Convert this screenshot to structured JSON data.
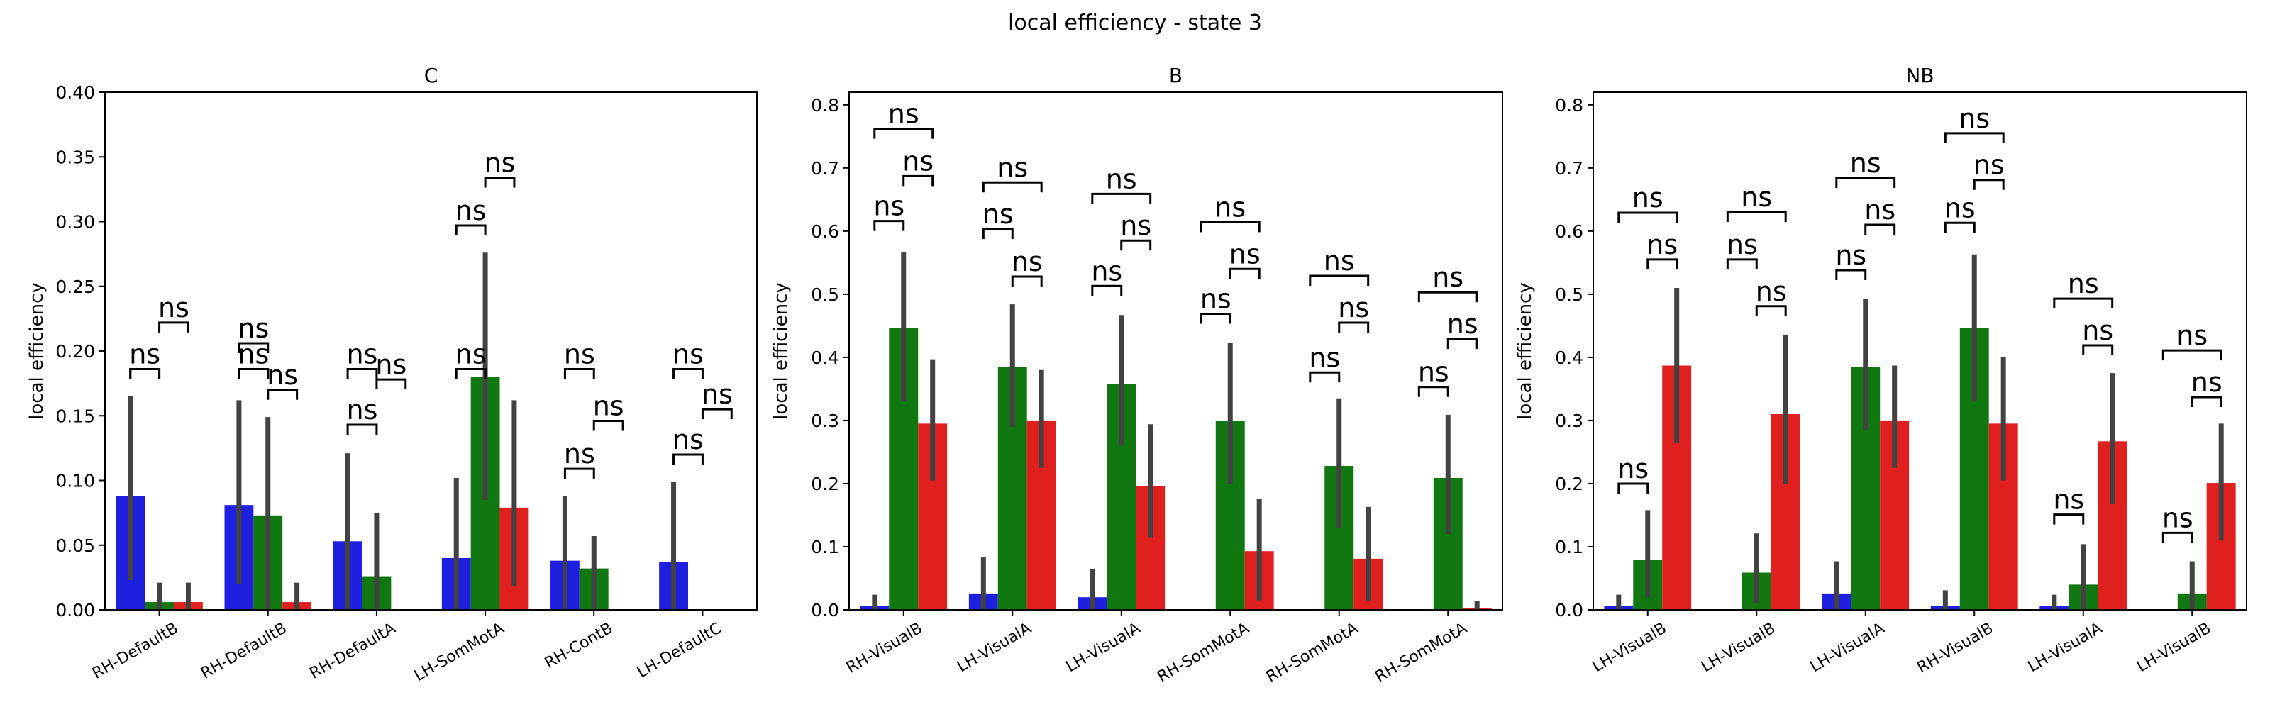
{
  "figure": {
    "title": "local efficiency - state 3"
  },
  "colors": {
    "series1": "#1f1fe0",
    "series2": "#117711",
    "series3": "#e01f1f",
    "errorbar": "#424242"
  },
  "chart_data": [
    {
      "type": "bar",
      "title": "C",
      "ylabel": "local efficiency",
      "ylim": [
        0,
        0.4
      ],
      "yticks": [
        "0.00",
        "0.05",
        "0.10",
        "0.15",
        "0.20",
        "0.25",
        "0.30",
        "0.35",
        "0.40"
      ],
      "categories": [
        "RH-DefaultB",
        "RH-DefaultB",
        "RH-DefaultA",
        "LH-SomMotA",
        "RH-ContB",
        "LH-DefaultC"
      ],
      "series": [
        {
          "values": [
            0.088,
            0.081,
            0.053,
            0.04,
            0.038,
            0.037
          ],
          "err_low": [
            0.023,
            0.02,
            0.0,
            0.0,
            0.0,
            0.0
          ],
          "err_high": [
            0.165,
            0.162,
            0.121,
            0.102,
            0.088,
            0.099
          ]
        },
        {
          "values": [
            0.006,
            0.073,
            0.026,
            0.18,
            0.032,
            0.0
          ],
          "err_low": [
            0.0,
            0.0,
            0.0,
            0.085,
            0.0,
            0.0
          ],
          "err_high": [
            0.021,
            0.149,
            0.075,
            0.276,
            0.057,
            0.0
          ]
        },
        {
          "values": [
            0.006,
            0.006,
            0.0,
            0.079,
            0.0,
            0.0
          ],
          "err_low": [
            0.0,
            0.0,
            0.0,
            0.018,
            0.0,
            0.0
          ],
          "err_high": [
            0.021,
            0.021,
            0.0,
            0.162,
            0.0,
            0.0
          ]
        }
      ],
      "annotations": {
        "label": "ns",
        "brackets": [
          {
            "from": 0,
            "to": 1,
            "y": [
              0.186,
              0.186,
              0.186,
              0.186,
              0.186,
              0.186
            ]
          },
          {
            "from": 1,
            "to": 2,
            "y": [
              0.222,
              0.17,
              0.178,
              0.334,
              0.146,
              0.155
            ]
          },
          {
            "from": 0,
            "to": 2,
            "y": [
              0.259,
              0.243,
              0.216,
              0.371,
              0.183,
              0.193
            ]
          }
        ],
        "first_bracket_y": [
          0.186,
          0.206,
          0.143,
          0.297,
          0.109,
          0.12
        ]
      }
    },
    {
      "type": "bar",
      "title": "B",
      "ylabel": "local efficiency",
      "ylim": [
        0,
        0.82
      ],
      "yticks": [
        "0.0",
        "0.1",
        "0.2",
        "0.3",
        "0.4",
        "0.5",
        "0.6",
        "0.7",
        "0.8"
      ],
      "categories": [
        "RH-VisualB",
        "LH-VisualA",
        "LH-VisualA",
        "RH-SomMotA",
        "RH-SomMotA",
        "RH-SomMotA"
      ],
      "series": [
        {
          "values": [
            0.006,
            0.026,
            0.02,
            0.0,
            0.0,
            0.0
          ],
          "err_low": [
            0.0,
            0.0,
            0.0,
            0.0,
            0.0,
            0.0
          ],
          "err_high": [
            0.024,
            0.083,
            0.064,
            0.0,
            0.0,
            0.0
          ]
        },
        {
          "values": [
            0.447,
            0.385,
            0.358,
            0.299,
            0.228,
            0.209
          ],
          "err_low": [
            0.33,
            0.29,
            0.26,
            0.2,
            0.13,
            0.12
          ],
          "err_high": [
            0.566,
            0.484,
            0.467,
            0.423,
            0.335,
            0.309
          ]
        },
        {
          "values": [
            0.295,
            0.3,
            0.196,
            0.093,
            0.081,
            0.003
          ],
          "err_low": [
            0.205,
            0.225,
            0.115,
            0.015,
            0.015,
            0.0
          ],
          "err_high": [
            0.397,
            0.38,
            0.294,
            0.176,
            0.163,
            0.014
          ]
        }
      ],
      "annotations": {
        "label": "ns",
        "first_bracket_y": [
          0.616,
          0.603,
          0.513,
          0.469,
          0.376,
          0.353
        ],
        "brackets": [
          {
            "from": 1,
            "to": 2,
            "y": [
              0.687,
              0.528,
              0.585,
              0.54,
              0.455,
              0.429
            ]
          },
          {
            "from": 0,
            "to": 2,
            "y": [
              0.762,
              0.677,
              0.659,
              0.614,
              0.529,
              0.503
            ]
          }
        ]
      }
    },
    {
      "type": "bar",
      "title": "NB",
      "ylabel": "local efficiency",
      "ylim": [
        0,
        0.82
      ],
      "yticks": [
        "0.0",
        "0.1",
        "0.2",
        "0.3",
        "0.4",
        "0.5",
        "0.6",
        "0.7",
        "0.8"
      ],
      "categories": [
        "LH-VisualB",
        "LH-VisualB",
        "LH-VisualA",
        "RH-VisualB",
        "LH-VisualA",
        "LH-VisualB"
      ],
      "series": [
        {
          "values": [
            0.006,
            0.0,
            0.026,
            0.006,
            0.006,
            0.0
          ],
          "err_low": [
            0.0,
            0.0,
            0.0,
            0.0,
            0.0,
            0.0
          ],
          "err_high": [
            0.024,
            0.0,
            0.077,
            0.031,
            0.024,
            0.0
          ]
        },
        {
          "values": [
            0.079,
            0.059,
            0.385,
            0.447,
            0.04,
            0.026
          ],
          "err_low": [
            0.02,
            0.01,
            0.285,
            0.33,
            0.0,
            0.0
          ],
          "err_high": [
            0.158,
            0.121,
            0.493,
            0.563,
            0.104,
            0.077
          ]
        },
        {
          "values": [
            0.387,
            0.31,
            0.3,
            0.295,
            0.267,
            0.201
          ],
          "err_low": [
            0.265,
            0.2,
            0.225,
            0.205,
            0.168,
            0.11
          ],
          "err_high": [
            0.51,
            0.436,
            0.387,
            0.4,
            0.375,
            0.295
          ]
        }
      ],
      "annotations": {
        "label": "ns",
        "first_bracket_y": [
          0.2,
          0.555,
          0.538,
          0.613,
          0.151,
          0.122
        ],
        "brackets": [
          {
            "from": 1,
            "to": 2,
            "y": [
              0.555,
              0.481,
              0.61,
              0.681,
              0.419,
              0.337
            ]
          },
          {
            "from": 0,
            "to": 2,
            "y": [
              0.629,
              0.63,
              0.684,
              0.755,
              0.493,
              0.411
            ]
          }
        ]
      }
    }
  ]
}
